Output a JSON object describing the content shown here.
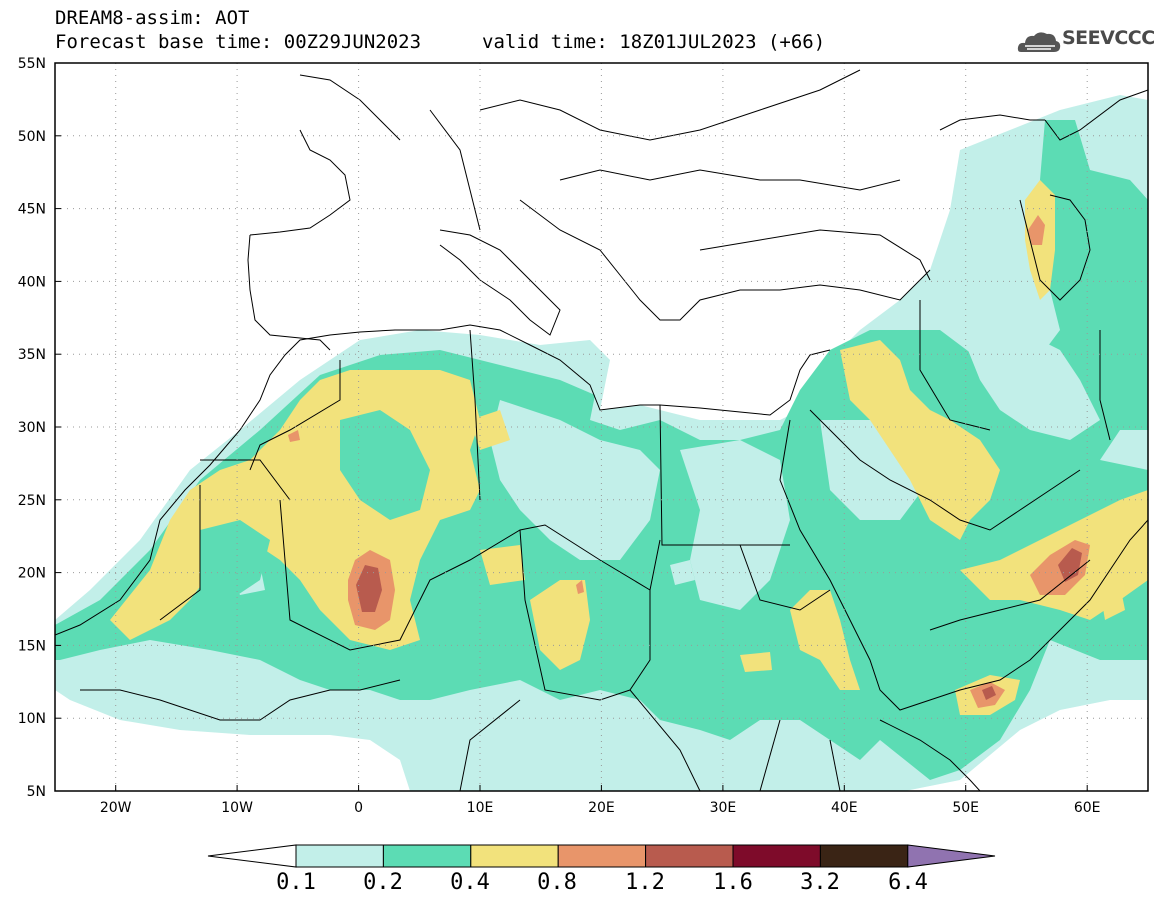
{
  "header": {
    "title": "DREAM8-assim: AOT",
    "base_time": "Forecast base time: 00Z29JUN2023",
    "valid_time": "valid time: 18Z01JUL2023 (+66)",
    "logo_text": "SEEVCCC"
  },
  "map": {
    "lon_range": [
      -25,
      65
    ],
    "lat_range": [
      5,
      55
    ],
    "x_ticks": [
      "20W",
      "10W",
      "0",
      "10E",
      "20E",
      "30E",
      "40E",
      "50E",
      "60E"
    ],
    "y_ticks": [
      "5N",
      "10N",
      "15N",
      "20N",
      "25N",
      "30N",
      "35N",
      "40N",
      "45N",
      "50N",
      "55N"
    ]
  },
  "colorbar": {
    "labels": [
      "0.1",
      "0.2",
      "0.4",
      "0.8",
      "1.2",
      "1.6",
      "3.2",
      "6.4"
    ],
    "colors": [
      "#ffffff",
      "#c2efe9",
      "#5cdcb4",
      "#f2e27c",
      "#e8956a",
      "#b85b4e",
      "#7e0b2a",
      "#3a2415",
      "#9073b0"
    ]
  }
}
